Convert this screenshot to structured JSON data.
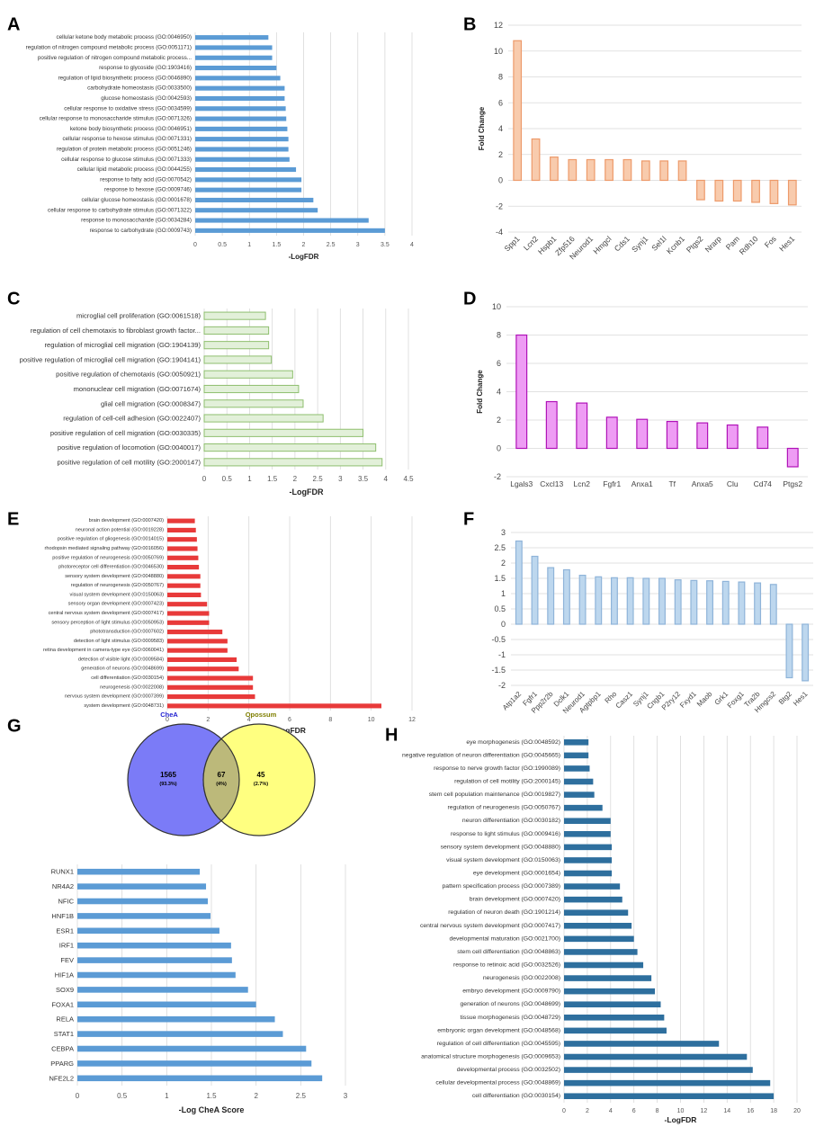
{
  "panel_labels": [
    "A",
    "B",
    "C",
    "D",
    "E",
    "F",
    "G",
    "H"
  ],
  "chart_data": [
    {
      "id": "A",
      "type": "bar",
      "orientation": "horizontal",
      "xlabel": "-LogFDR",
      "xlim": [
        0,
        4
      ],
      "xticks": [
        "0",
        "0.5",
        "1",
        "1.5",
        "2",
        "2.5",
        "3",
        "3.5",
        "4"
      ],
      "color": "#5b9bd5",
      "categories": [
        "cellular ketone body metabolic process (GO:0046950)",
        "regulation of nitrogen compound metabolic process (GO:0051171)",
        "positive regulation of nitrogen compound metabolic process...",
        "response to glycoside (GO:1903416)",
        "regulation of lipid biosynthetic process (GO:0046890)",
        "carbohydrate homeostasis (GO:0033500)",
        "glucose homeostasis (GO:0042593)",
        "cellular response to oxidative stress (GO:0034599)",
        "cellular response to monosaccharide stimulus (GO:0071326)",
        "ketone body biosynthetic process (GO:0046951)",
        "cellular response to hexose stimulus (GO:0071331)",
        "regulation of protein metabolic process (GO:0051246)",
        "cellular response to glucose stimulus (GO:0071333)",
        "cellular lipid metabolic process (GO:0044255)",
        "response to fatty acid (GO:0070542)",
        "response to hexose (GO:0009746)",
        "cellular glucose homeostasis (GO:0001678)",
        "cellular response to carbohydrate stimulus (GO:0071322)",
        "response to monosaccharide (GO:0034284)",
        "response to carbohydrate (GO:0009743)"
      ],
      "values": [
        1.35,
        1.42,
        1.42,
        1.5,
        1.57,
        1.65,
        1.65,
        1.67,
        1.68,
        1.7,
        1.72,
        1.72,
        1.74,
        1.86,
        1.96,
        1.96,
        2.18,
        2.26,
        3.2,
        3.5
      ]
    },
    {
      "id": "B",
      "type": "bar",
      "orientation": "vertical",
      "ylabel": "Fold Change",
      "ylim": [
        -4,
        12
      ],
      "yticks": [
        "-4",
        "-2",
        "0",
        "2",
        "4",
        "6",
        "8",
        "10",
        "12"
      ],
      "fill": "#f8cbad",
      "stroke": "#ed9a6a",
      "categories": [
        "Spp1",
        "Lcn2",
        "Hspb1",
        "Zfp516",
        "Neurod1",
        "Hmgcl",
        "Cds1",
        "Synj1",
        "Sel1l",
        "Kcnb1",
        "Ptgs2",
        "Nrarp",
        "Pam",
        "Rdh10",
        "Fos",
        "Hes1"
      ],
      "values": [
        10.8,
        3.2,
        1.8,
        1.6,
        1.6,
        1.6,
        1.6,
        1.5,
        1.5,
        1.5,
        -1.5,
        -1.6,
        -1.6,
        -1.7,
        -1.8,
        -1.9
      ]
    },
    {
      "id": "C",
      "type": "bar",
      "orientation": "horizontal",
      "xlabel": "-LogFDR",
      "xlim": [
        0,
        4.5
      ],
      "xticks": [
        "0",
        "0.5",
        "1",
        "1.5",
        "2",
        "2.5",
        "3",
        "3.5",
        "4",
        "4.5"
      ],
      "fill": "#e2f0d9",
      "stroke": "#8fbf6f",
      "categories": [
        "microglial cell proliferation (GO:0061518)",
        "regulation of cell chemotaxis to fibroblast growth factor...",
        "regulation of microglial cell migration (GO:1904139)",
        "positive regulation of microglial cell migration (GO:1904141)",
        "positive regulation of chemotaxis (GO:0050921)",
        "mononuclear cell migration (GO:0071674)",
        "glial cell migration (GO:0008347)",
        "regulation of cell-cell adhesion (GO:0022407)",
        "positive regulation of cell migration (GO:0030335)",
        "positive regulation of locomotion (GO:0040017)",
        "positive regulation of cell motility (GO:2000147)"
      ],
      "values": [
        1.35,
        1.42,
        1.42,
        1.48,
        1.95,
        2.08,
        2.18,
        2.62,
        3.5,
        3.78,
        3.92
      ]
    },
    {
      "id": "D",
      "type": "bar",
      "orientation": "vertical",
      "ylabel": "Fold Change",
      "ylim": [
        -2,
        10
      ],
      "yticks": [
        "-2",
        "0",
        "2",
        "4",
        "6",
        "8",
        "10"
      ],
      "fill": "#ee9cf4",
      "stroke": "#b012b8",
      "categories": [
        "Lgals3",
        "Cxcl13",
        "Lcn2",
        "Fgfr1",
        "Anxa1",
        "Tf",
        "Anxa5",
        "Clu",
        "Cd74",
        "Ptgs2"
      ],
      "values": [
        8.0,
        3.3,
        3.2,
        2.2,
        2.05,
        1.9,
        1.8,
        1.65,
        1.5,
        -1.3
      ]
    },
    {
      "id": "E",
      "type": "bar",
      "orientation": "horizontal",
      "xlabel": "-LogFDR",
      "xlim": [
        0,
        12
      ],
      "xticks": [
        "0",
        "2",
        "4",
        "6",
        "8",
        "10",
        "12"
      ],
      "color": "#e83a3a",
      "categories": [
        "brain development (GO:0007420)",
        "neuronal action potential (GO:0019228)",
        "positive regulation of gliogenesis (GO:0014015)",
        "rhodopsin mediated signaling pathway (GO:0016056)",
        "positive regulation of neurogenesis (GO:0050769)",
        "photoreceptor cell differentiation (GO:0046530)",
        "sensory system development (GO:0048880)",
        "regulation of neurogenesis (GO:0050767)",
        "visual system development (GO:0150063)",
        "sensory organ development (GO:0007423)",
        "central nervous system development (GO:0007417)",
        "sensory perception of light stimulus (GO:0050953)",
        "phototransduction (GO:0007602)",
        "detection of light stimulus (GO:0009583)",
        "retina development in camera-type eye (GO:0060041)",
        "detection of visible light (GO:0009584)",
        "generation of neurons (GO:0048699)",
        "cell differentiation (GO:0030154)",
        "neurogenesis (GO:0022008)",
        "nervous system development (GO:0007399)",
        "system development (GO:0048731)"
      ],
      "values": [
        1.35,
        1.4,
        1.45,
        1.48,
        1.52,
        1.55,
        1.62,
        1.62,
        1.65,
        1.95,
        2.05,
        2.05,
        2.7,
        2.95,
        2.95,
        3.4,
        3.5,
        4.2,
        4.2,
        4.3,
        10.5
      ]
    },
    {
      "id": "F",
      "type": "bar",
      "orientation": "vertical",
      "ylim": [
        -2,
        3
      ],
      "yticks": [
        "-2",
        "-1.5",
        "-1",
        "-0.5",
        "0",
        "0.5",
        "1",
        "1.5",
        "2",
        "2.5",
        "3"
      ],
      "fill": "#bdd7ee",
      "stroke": "#8fb4d9",
      "categories": [
        "Atp1a2",
        "Fgfr1",
        "Ppp2r2b",
        "Dclk1",
        "Neurod1",
        "Agtpbp1",
        "Rho",
        "Casz1",
        "Synj1",
        "Cngb1",
        "P2ry12",
        "Fxyd1",
        "Maob",
        "Grk1",
        "Foxg1",
        "Tra2b",
        "Hmgcs2",
        "Btg2",
        "Hes1"
      ],
      "values": [
        2.72,
        2.22,
        1.85,
        1.78,
        1.6,
        1.55,
        1.52,
        1.52,
        1.5,
        1.5,
        1.45,
        1.43,
        1.42,
        1.4,
        1.38,
        1.35,
        1.3,
        -1.75,
        -1.85
      ]
    },
    {
      "id": "G-venn",
      "type": "venn",
      "sets": [
        {
          "name": "CheA",
          "only": "1565",
          "only_pct": "(93.3%)",
          "color": "#7b7bf7",
          "label_color": "#1f1fd0"
        },
        {
          "name": "Opossum",
          "only": "45",
          "only_pct": "(2.7%)",
          "color": "#ffff80",
          "label_color": "#7f7f00"
        }
      ],
      "intersection": "67",
      "intersection_pct": "(4%)",
      "overlap_color": "#bcb97a"
    },
    {
      "id": "G-bar",
      "type": "bar",
      "orientation": "horizontal",
      "xlabel": "-Log CheA Score",
      "xlim": [
        0,
        3
      ],
      "xticks": [
        "0",
        "0.5",
        "1",
        "1.5",
        "2",
        "2.5",
        "3"
      ],
      "color": "#5b9bd5",
      "categories": [
        "RUNX1",
        "NR4A2",
        "NFIC",
        "HNF1B",
        "ESR1",
        "IRF1",
        "FEV",
        "HIF1A",
        "SOX9",
        "FOXA1",
        "RELA",
        "STAT1",
        "CEBPA",
        "PPARG",
        "NFE2L2"
      ],
      "values": [
        1.37,
        1.44,
        1.46,
        1.49,
        1.59,
        1.72,
        1.73,
        1.77,
        1.91,
        2.0,
        2.21,
        2.3,
        2.56,
        2.62,
        2.74
      ]
    },
    {
      "id": "H",
      "type": "bar",
      "orientation": "horizontal",
      "xlabel": "-LogFDR",
      "xlim": [
        0,
        20
      ],
      "xticks": [
        "0",
        "2",
        "4",
        "6",
        "8",
        "10",
        "12",
        "14",
        "16",
        "18",
        "20"
      ],
      "color": "#2e6f9e",
      "categories": [
        "eye morphogenesis (GO:0048592)",
        "negative regulation of neuron differentiation (GO:0045665)",
        "response to nerve growth factor (GO:1990089)",
        "regulation of cell motility (GO:2000145)",
        "stem cell population maintenance (GO:0019827)",
        "regulation of neurogenesis (GO:0050767)",
        "neuron differentiation (GO:0030182)",
        "response to light stimulus (GO:0009416)",
        "sensory system development (GO:0048880)",
        "visual system development (GO:0150063)",
        "eye development (GO:0001654)",
        "pattern specification process (GO:0007389)",
        "brain development (GO:0007420)",
        "regulation of neuron death (GO:1901214)",
        "central nervous system development (GO:0007417)",
        "developmental maturation (GO:0021700)",
        "stem cell differentiation (GO:0048863)",
        "response to retinoic acid (GO:0032526)",
        "neurogenesis (GO:0022008)",
        "embryo development (GO:0009790)",
        "generation of neurons (GO:0048699)",
        "tissue morphogenesis (GO:0048729)",
        "embryonic organ development (GO:0048568)",
        "regulation of cell differentiation (GO:0045595)",
        "anatomical structure morphogenesis (GO:0009653)",
        "developmental process (GO:0032502)",
        "cellular developmental process (GO:0048869)",
        "cell differentiation (GO:0030154)"
      ],
      "values": [
        2.1,
        2.1,
        2.2,
        2.5,
        2.6,
        3.3,
        4.0,
        4.0,
        4.1,
        4.1,
        4.1,
        4.8,
        5.0,
        5.5,
        5.8,
        6.0,
        6.3,
        6.8,
        7.5,
        7.8,
        8.3,
        8.6,
        8.8,
        13.3,
        15.7,
        16.2,
        17.7,
        18.0
      ]
    }
  ]
}
